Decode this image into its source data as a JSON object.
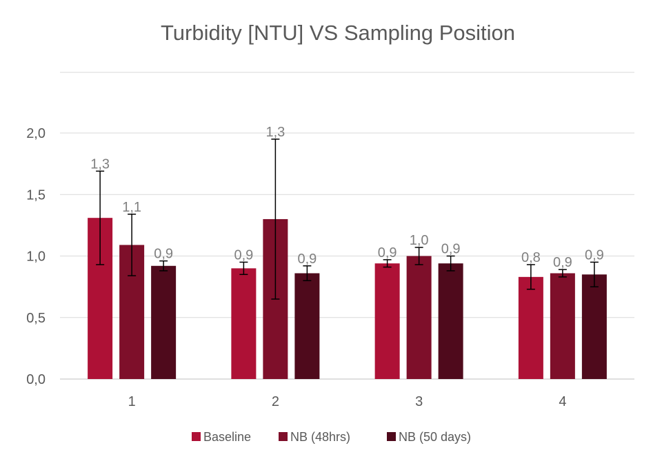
{
  "chart_data": {
    "type": "bar",
    "title": "Turbidity [NTU] VS Sampling Position",
    "categories": [
      "1",
      "2",
      "3",
      "4"
    ],
    "ylim": [
      0,
      2.4
    ],
    "yticks": [
      "0,0",
      "0,5",
      "1,0",
      "1,5",
      "2,0"
    ],
    "ytick_values": [
      0,
      0.5,
      1.0,
      1.5,
      2.0
    ],
    "grid": true,
    "legend_position": "bottom",
    "series": [
      {
        "name": "Baseline",
        "color": "#AE1136",
        "values": [
          1.31,
          0.9,
          0.94,
          0.83
        ],
        "errors": [
          0.38,
          0.05,
          0.03,
          0.1
        ],
        "labels": [
          "1,3",
          "0,9",
          "0,9",
          "0,8"
        ]
      },
      {
        "name": "NB (48hrs)",
        "color": "#7E0F2A",
        "values": [
          1.09,
          1.3,
          1.0,
          0.86
        ],
        "errors": [
          0.25,
          0.65,
          0.07,
          0.03
        ],
        "labels": [
          "1,1",
          "1,3",
          "1,0",
          "0,9"
        ]
      },
      {
        "name": "NB (50 days)",
        "color": "#4F0A1C",
        "values": [
          0.92,
          0.86,
          0.94,
          0.85
        ],
        "errors": [
          0.04,
          0.06,
          0.06,
          0.1
        ],
        "labels": [
          "0,9",
          "0,9",
          "0,9",
          "0,9"
        ]
      }
    ]
  }
}
